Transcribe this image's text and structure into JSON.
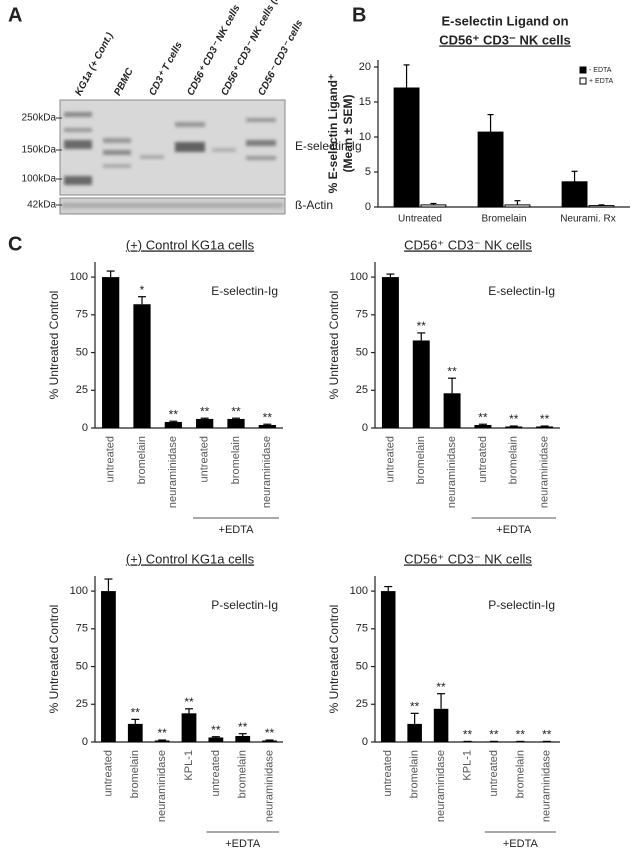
{
  "panels": [
    "A",
    "B",
    "C"
  ],
  "blot": {
    "lanes": [
      "KG1a (+ Cont.)",
      "PBMC",
      "CD3⁺ T cells",
      "CD56⁺ CD3⁻ NK cells",
      "CD56⁺ CD3⁻ NK cells (Protease Rx)",
      "CD56⁻ CD3⁻ cells"
    ],
    "markers": [
      "250kDa",
      "150kDa",
      "100kDa",
      "42kDa"
    ],
    "bands": [
      "E-selectin-Ig",
      "ß-Actin"
    ]
  },
  "chart_data": [
    {
      "type": "grouped_bar",
      "title": [
        "E-selectin Ligand on",
        "CD56⁺ CD3⁻ NK cells"
      ],
      "ylabel": [
        "% E-selectin Ligand⁺",
        "(Mean ± SEM)"
      ],
      "categories": [
        "Untreated",
        "Bromelain",
        "Neurami. Rx"
      ],
      "series": [
        {
          "name": "- EDTA",
          "color": "#000000",
          "values": [
            17,
            10.7,
            3.6
          ],
          "errors": [
            3.3,
            2.5,
            1.5
          ]
        },
        {
          "name": "+ EDTA",
          "color": "#ffffff",
          "values": [
            0.3,
            0.3,
            0.2
          ],
          "errors": [
            0.2,
            0.6,
            0.1
          ]
        }
      ],
      "ylim": [
        0,
        21
      ],
      "yticks": [
        0,
        5,
        10,
        15,
        20
      ],
      "legend": "upper right"
    },
    {
      "type": "bar",
      "title": "(+) Control KG1a cells",
      "annotation": "E-selectin-Ig",
      "ylabel": "% Untreated Control",
      "groups": [
        {
          "label": null,
          "categories": [
            "untreated",
            "bromelain",
            "neuraminidase"
          ]
        },
        {
          "label": "+EDTA",
          "categories": [
            "untreated",
            "bromelain",
            "neuraminidase"
          ]
        }
      ],
      "values": [
        100,
        82,
        4,
        6,
        6,
        2
      ],
      "errors": [
        4,
        5,
        0.5,
        0.5,
        0.5,
        0.5
      ],
      "significance": [
        null,
        "*",
        "**",
        "**",
        "**",
        "**"
      ],
      "color": "#000000",
      "ylim": [
        0,
        110
      ],
      "yticks": [
        0,
        25,
        50,
        75,
        100
      ]
    },
    {
      "type": "bar",
      "title": "CD56⁺ CD3⁻ NK cells",
      "annotation": "E-selectin-Ig",
      "ylabel": "% Untreated Control",
      "groups": [
        {
          "label": null,
          "categories": [
            "untreated",
            "bromelain",
            "neuraminidase"
          ]
        },
        {
          "label": "+EDTA",
          "categories": [
            "untreated",
            "bromelain",
            "neuraminidase"
          ]
        }
      ],
      "values": [
        100,
        58,
        23,
        2,
        1,
        1
      ],
      "errors": [
        2,
        5,
        10,
        0.5,
        0.3,
        0.3
      ],
      "significance": [
        null,
        "**",
        "**",
        "**",
        "**",
        "**"
      ],
      "color": "#000000",
      "ylim": [
        0,
        110
      ],
      "yticks": [
        0,
        25,
        50,
        75,
        100
      ]
    },
    {
      "type": "bar",
      "title": "(+) Control KG1a cells",
      "annotation": "P-selectin-Ig",
      "ylabel": "% Untreated Control",
      "groups": [
        {
          "label": null,
          "categories": [
            "untreated",
            "bromelain",
            "neuraminidase",
            "KPL-1"
          ]
        },
        {
          "label": "+EDTA",
          "categories": [
            "untreated",
            "bromelain",
            "neuraminidase"
          ]
        }
      ],
      "values": [
        100,
        12,
        1,
        19,
        3,
        4,
        1
      ],
      "errors": [
        8,
        3,
        0.3,
        3,
        0.5,
        1.5,
        0.3
      ],
      "significance": [
        null,
        "**",
        "**",
        "**",
        "**",
        "**",
        "**"
      ],
      "color": "#000000",
      "ylim": [
        0,
        110
      ],
      "yticks": [
        0,
        25,
        50,
        75,
        100
      ]
    },
    {
      "type": "bar",
      "title": "CD56⁺ CD3⁻ NK cells",
      "annotation": "P-selectin-Ig",
      "ylabel": "% Untreated Control",
      "groups": [
        {
          "label": null,
          "categories": [
            "untreated",
            "bromelain",
            "neuraminidase",
            "KPL-1"
          ]
        },
        {
          "label": "+EDTA",
          "categories": [
            "untreated",
            "bromelain",
            "neuraminidase"
          ]
        }
      ],
      "values": [
        100,
        12,
        22,
        0.3,
        0.3,
        0.3,
        0.3
      ],
      "errors": [
        3,
        7,
        10,
        0.1,
        0.1,
        0.1,
        0.1
      ],
      "significance": [
        null,
        "**",
        "**",
        "**",
        "**",
        "**",
        "**"
      ],
      "color": "#000000",
      "ylim": [
        0,
        110
      ],
      "yticks": [
        0,
        25,
        50,
        75,
        100
      ]
    }
  ]
}
